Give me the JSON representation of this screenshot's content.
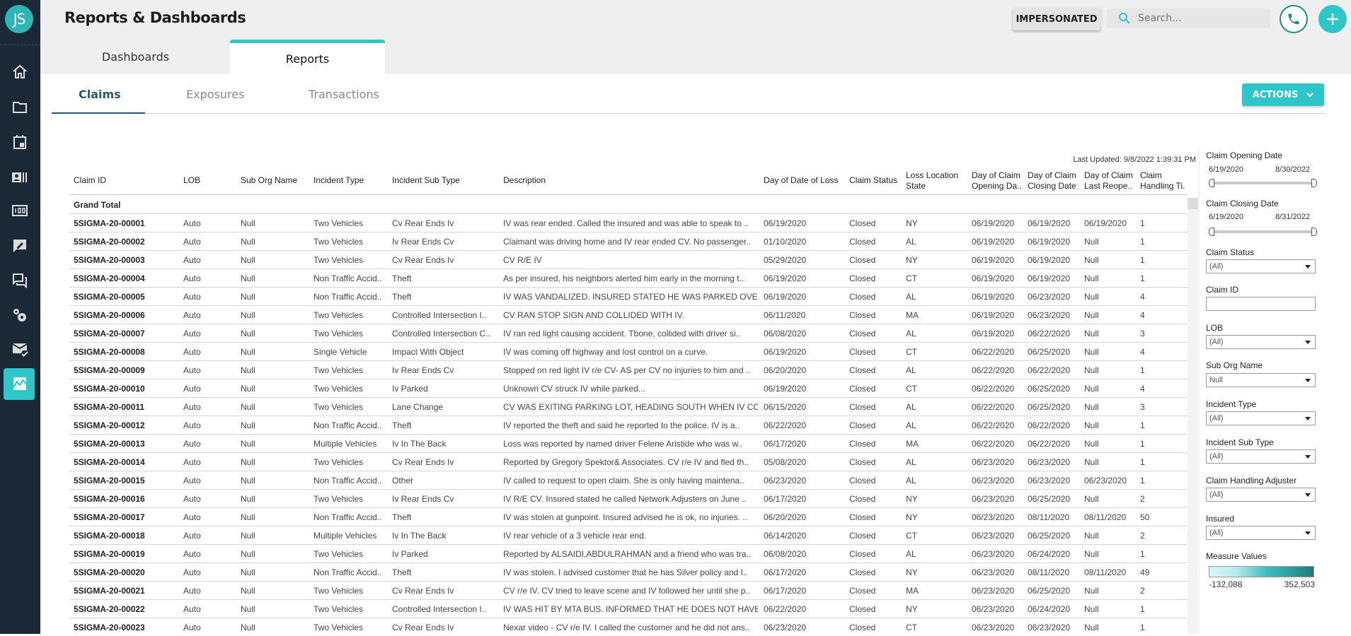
{
  "user": {
    "initials": "JS"
  },
  "sidebar": {
    "items": [
      {
        "icon": "home-icon"
      },
      {
        "icon": "folder-icon"
      },
      {
        "icon": "calendar-icon"
      },
      {
        "icon": "contacts-icon"
      },
      {
        "icon": "counter-icon"
      },
      {
        "icon": "edit-note-icon"
      },
      {
        "icon": "chat-icon"
      },
      {
        "icon": "settings-icon"
      },
      {
        "icon": "mail-check-icon"
      },
      {
        "icon": "chart-icon",
        "active": true
      }
    ]
  },
  "header": {
    "title": "Reports & Dashboards",
    "impersonated_label": "IMPERSONATED",
    "search_placeholder": "Search...",
    "tabs": [
      {
        "label": "Dashboards"
      },
      {
        "label": "Reports",
        "active": true
      }
    ]
  },
  "subtabs": [
    {
      "label": "Claims",
      "active": true
    },
    {
      "label": "Exposures"
    },
    {
      "label": "Transactions"
    }
  ],
  "actions_label": "ACTIONS",
  "colors": {
    "accent": "#2fc6c9",
    "sidebar": "#1b2835",
    "subtab_active": "#2e5573"
  },
  "report": {
    "last_updated": "Last Updated: 9/8/2022 1:39:31 PM",
    "grand_total": "Grand Total",
    "columns": [
      "Claim ID",
      "LOB",
      "Sub Org Name",
      "Incident Type",
      "Incident Sub Type",
      "Description",
      "Day of Date of Loss",
      "Claim Status",
      "Loss Location State",
      "Day of Claim Opening Da..",
      "Day of Claim Closing Date",
      "Day of Claim Last Reope..",
      "Claim Handling Ti."
    ],
    "rows": [
      [
        "5SIGMA-20-00001",
        "Auto",
        "Null",
        "Two Vehicles",
        "Cv Rear Ends Iv",
        "IV was rear ended. Called the insured and was able to speak to ..",
        "06/19/2020",
        "Closed",
        "NY",
        "06/19/2020",
        "06/19/2020",
        "06/19/2020",
        "1"
      ],
      [
        "5SIGMA-20-00002",
        "Auto",
        "Null",
        "Two Vehicles",
        "Iv Rear Ends Cv",
        "Claimant was driving home and IV rear ended CV. No passenger..",
        "01/10/2020",
        "Closed",
        "AL",
        "06/19/2020",
        "06/19/2020",
        "Null",
        "1"
      ],
      [
        "5SIGMA-20-00003",
        "Auto",
        "Null",
        "Two Vehicles",
        "Cv Rear Ends Iv",
        "CV R/E IV",
        "05/29/2020",
        "Closed",
        "NY",
        "06/19/2020",
        "06/19/2020",
        "Null",
        "1"
      ],
      [
        "5SIGMA-20-00004",
        "Auto",
        "Null",
        "Non Traffic Accid..",
        "Theft",
        "As per insured, his neighbors alerted him early in the morning t..",
        "06/19/2020",
        "Closed",
        "CT",
        "06/19/2020",
        "06/19/2020",
        "Null",
        "1"
      ],
      [
        "5SIGMA-20-00005",
        "Auto",
        "Null",
        "Non Traffic Accid..",
        "Theft",
        "IV WAS VANDALIZED. INSURED STATED HE WAS PARKED OVER..",
        "06/19/2020",
        "Closed",
        "AL",
        "06/19/2020",
        "06/23/2020",
        "Null",
        "4"
      ],
      [
        "5SIGMA-20-00006",
        "Auto",
        "Null",
        "Two Vehicles",
        "Controlled Intersection  I..",
        "CV RAN STOP SIGN AND COLLIDED WITH IV.",
        "06/11/2020",
        "Closed",
        "MA",
        "06/19/2020",
        "06/23/2020",
        "Null",
        "4"
      ],
      [
        "5SIGMA-20-00007",
        "Auto",
        "Null",
        "Two Vehicles",
        "Controlled Intersection  C..",
        "IV ran red light causing accident. Tbone, collided with driver si..",
        "06/08/2020",
        "Closed",
        "AL",
        "06/19/2020",
        "06/22/2020",
        "Null",
        "3"
      ],
      [
        "5SIGMA-20-00008",
        "Auto",
        "Null",
        "Single Vehicle",
        "Impact With Object",
        "IV was coming off highway and lost control on a curve.",
        "06/19/2020",
        "Closed",
        "CT",
        "06/22/2020",
        "06/25/2020",
        "Null",
        "4"
      ],
      [
        "5SIGMA-20-00009",
        "Auto",
        "Null",
        "Two Vehicles",
        "Iv Rear Ends Cv",
        "Stopped on red light IV r/e CV- AS per CV no injuries to him and ..",
        "06/20/2020",
        "Closed",
        "AL",
        "06/22/2020",
        "06/22/2020",
        "Null",
        "1"
      ],
      [
        "5SIGMA-20-00010",
        "Auto",
        "Null",
        "Two Vehicles",
        "Iv Parked",
        "Unknown CV struck IV while parked...",
        "06/19/2020",
        "Closed",
        "CT",
        "06/22/2020",
        "06/25/2020",
        "Null",
        "4"
      ],
      [
        "5SIGMA-20-00011",
        "Auto",
        "Null",
        "Two Vehicles",
        "Lane Change",
        "CV WAS EXITING PARKING LOT, HEADING SOUTH WHEN IV COL..",
        "06/15/2020",
        "Closed",
        "AL",
        "06/22/2020",
        "06/25/2020",
        "Null",
        "3"
      ],
      [
        "5SIGMA-20-00012",
        "Auto",
        "Null",
        "Non Traffic Accid..",
        "Theft",
        "IV reported the theft and said he reported to the police. IV is a..",
        "06/22/2020",
        "Closed",
        "AL",
        "06/22/2020",
        "06/22/2020",
        "Null",
        "1"
      ],
      [
        "5SIGMA-20-00013",
        "Auto",
        "Null",
        "Multiple Vehicles",
        "Iv In The Back",
        "Loss was reported by named driver Felene Aristide who was w..",
        "06/17/2020",
        "Closed",
        "MA",
        "06/22/2020",
        "06/22/2020",
        "Null",
        "1"
      ],
      [
        "5SIGMA-20-00014",
        "Auto",
        "Null",
        "Two Vehicles",
        "Cv Rear Ends Iv",
        "Reported by Gregory Spektor& Associates. CV r/e IV and fled th..",
        "05/08/2020",
        "Closed",
        "AL",
        "06/23/2020",
        "06/23/2020",
        "Null",
        "1"
      ],
      [
        "5SIGMA-20-00015",
        "Auto",
        "Null",
        "Non Traffic Accid..",
        "Other",
        "IV called to request to open claim. She is only having maintena..",
        "06/23/2020",
        "Closed",
        "AL",
        "06/23/2020",
        "06/23/2020",
        "06/23/2020",
        "1"
      ],
      [
        "5SIGMA-20-00016",
        "Auto",
        "Null",
        "Two Vehicles",
        "Iv Rear Ends Cv",
        "IV R/E CV. Insured stated he called Network Adjusters on June ..",
        "06/17/2020",
        "Closed",
        "NY",
        "06/23/2020",
        "06/25/2020",
        "Null",
        "2"
      ],
      [
        "5SIGMA-20-00017",
        "Auto",
        "Null",
        "Non Traffic Accid..",
        "Theft",
        "IV was stolen at gunpoint. Insured advised he is ok, no injuries. ..",
        "06/20/2020",
        "Closed",
        "NY",
        "06/23/2020",
        "08/11/2020",
        "08/11/2020",
        "50"
      ],
      [
        "5SIGMA-20-00018",
        "Auto",
        "Null",
        "Multiple Vehicles",
        "Iv In The Back",
        "IV rear vehicle of a 3 vehicle rear end.",
        "06/14/2020",
        "Closed",
        "CT",
        "06/23/2020",
        "06/25/2020",
        "Null",
        "2"
      ],
      [
        "5SIGMA-20-00019",
        "Auto",
        "Null",
        "Two Vehicles",
        "Iv Parked",
        "Reported by ALSAIDI,ABDULRAHMAN and a friend who was tra..",
        "06/08/2020",
        "Closed",
        "AL",
        "06/23/2020",
        "06/24/2020",
        "Null",
        "1"
      ],
      [
        "5SIGMA-20-00020",
        "Auto",
        "Null",
        "Non Traffic Accid..",
        "Theft",
        "IV was stolen. I advised customer that he has Silver policy and I..",
        "06/17/2020",
        "Closed",
        "NY",
        "06/23/2020",
        "08/11/2020",
        "08/11/2020",
        "49"
      ],
      [
        "5SIGMA-20-00021",
        "Auto",
        "Null",
        "Two Vehicles",
        "Cv Rear Ends Iv",
        "CV r/e IV. CV tried to leave scene and IV followed her until she p..",
        "06/17/2020",
        "Closed",
        "MA",
        "06/23/2020",
        "06/25/2020",
        "Null",
        "2"
      ],
      [
        "5SIGMA-20-00022",
        "Auto",
        "Null",
        "Two Vehicles",
        "Controlled Intersection  I..",
        "IV WAS HIT BY MTA BUS. INFORMED THAT HE DOES NOT HAVE ..",
        "06/22/2020",
        "Closed",
        "NY",
        "06/23/2020",
        "06/24/2020",
        "Null",
        "1"
      ],
      [
        "5SIGMA-20-00023",
        "Auto",
        "Null",
        "Two Vehicles",
        "Cv Rear Ends Iv",
        "Nexar video - CV r/e IV. I called the customer and he did not ans..",
        "06/23/2020",
        "Closed",
        "CT",
        "06/23/2020",
        "06/23/2020",
        "Null",
        "1"
      ]
    ]
  },
  "filters": {
    "opening_date": {
      "label": "Claim Opening Date",
      "min": "6/19/2020",
      "max": "8/30/2022"
    },
    "closing_date": {
      "label": "Claim Closing Date",
      "min": "6/19/2020",
      "max": "8/31/2022"
    },
    "claim_status": {
      "label": "Claim Status",
      "value": "(All)"
    },
    "claim_id": {
      "label": "Claim ID",
      "value": ""
    },
    "lob": {
      "label": "LOB",
      "value": "(All)"
    },
    "sub_org": {
      "label": "Sub Org Name",
      "value": "Null"
    },
    "incident_type": {
      "label": "Incident Type",
      "value": "(All)"
    },
    "incident_sub_type": {
      "label": "Incident Sub Type",
      "value": "(All)"
    },
    "adjuster": {
      "label": "Claim Handling Adjuster",
      "value": "(All)"
    },
    "insured": {
      "label": "Insured",
      "value": "(All)"
    },
    "measure": {
      "label": "Measure Values",
      "min": "-132,088",
      "max": "352,503",
      "color_low": "#d9f6f7",
      "color_high": "#1e7d7a"
    }
  }
}
